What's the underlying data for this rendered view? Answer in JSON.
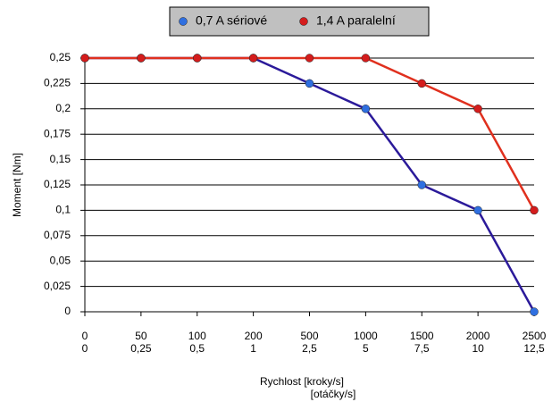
{
  "chart_data": {
    "type": "line",
    "categories": [
      "0",
      "50",
      "100",
      "200",
      "500",
      "1000",
      "1500",
      "2000",
      "2500"
    ],
    "category_sublabels": [
      "0",
      "0,25",
      "0,5",
      "1",
      "2,5",
      "5",
      "7,5",
      "10",
      "12,5"
    ],
    "series": [
      {
        "name": "0,7 A sériové",
        "color": "#2b1a9a",
        "marker_color": "#2f6fe0",
        "values": [
          0.25,
          0.25,
          0.25,
          0.25,
          0.225,
          0.2,
          0.125,
          0.1,
          0
        ]
      },
      {
        "name": "1,4 A paralelní",
        "color": "#e0301e",
        "marker_color": "#d41c1c",
        "values": [
          0.25,
          0.25,
          0.25,
          0.25,
          0.25,
          0.25,
          0.225,
          0.2,
          0.1
        ]
      }
    ],
    "ylim": [
      0,
      0.25
    ],
    "yticks": [
      0,
      {
        "value": 0.025,
        "label": "0,025"
      },
      {
        "value": 0.05,
        "label": "0,05"
      },
      {
        "value": 0.075,
        "label": "0,075"
      },
      {
        "value": 0.1,
        "label": "0,1"
      },
      {
        "value": 0.125,
        "label": "0,125"
      },
      {
        "value": 0.15,
        "label": "0,15"
      },
      {
        "value": 0.175,
        "label": "0,175"
      },
      {
        "value": 0.2,
        "label": "0,2"
      },
      {
        "value": 0.225,
        "label": "0,225"
      },
      {
        "value": 0.25,
        "label": "0,25"
      }
    ],
    "xlabel": "Rychlost [kroky/s]",
    "xlabel2": "[otáčky/s]",
    "ylabel": "Moment [Nm]",
    "grid": true
  }
}
